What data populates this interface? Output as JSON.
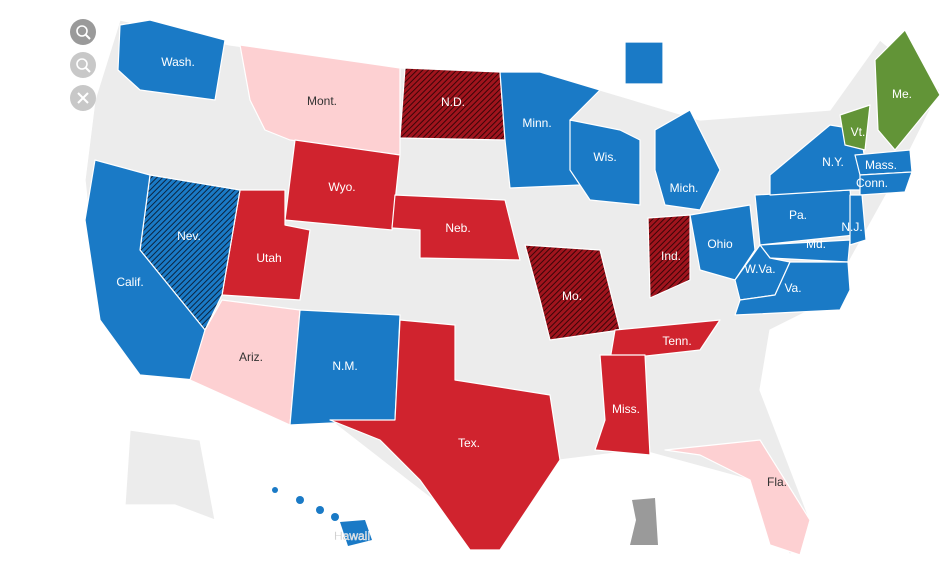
{
  "states": [
    "Wash.",
    "Mont.",
    "N.D.",
    "Minn.",
    "Me.",
    "Vt.",
    "Wis.",
    "Mich.",
    "N.Y.",
    "Mass.",
    "Conn.",
    "Wyo.",
    "Nev.",
    "Neb.",
    "Utah",
    "Calif.",
    "Ind.",
    "Ohio",
    "Pa.",
    "N.J.",
    "Md.",
    "W.Va.",
    "Va.",
    "Mo.",
    "Tenn.",
    "Ariz.",
    "N.M.",
    "Miss.",
    "Tex.",
    "Fla."
  ],
  "inset_label": "Hawaii"
}
